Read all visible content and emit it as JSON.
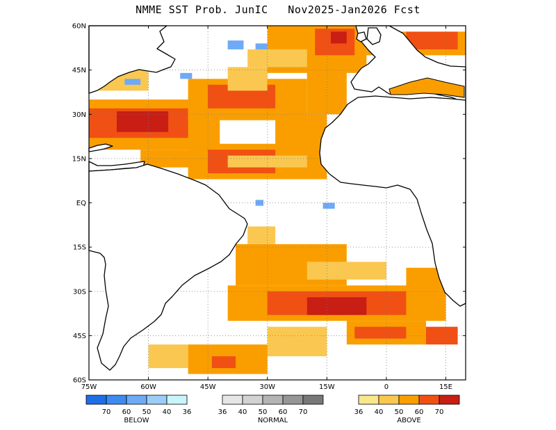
{
  "title": "NMME SST Prob. JunIC   Nov2025-Jan2026 Fcst",
  "map": {
    "lat_range": [
      -60,
      60
    ],
    "lon_range": [
      -75,
      20
    ],
    "lat_ticks": [
      "60N",
      "45N",
      "30N",
      "15N",
      "EQ",
      "15S",
      "30S",
      "45S",
      "60S"
    ],
    "lon_ticks": [
      "75W",
      "60W",
      "45W",
      "30W",
      "15W",
      "0",
      "15E"
    ],
    "grid": "dotted",
    "land_color": "#ffffff",
    "coast_color": "#000000"
  },
  "legend": {
    "below": {
      "title": "BELOW",
      "colors": [
        "#1e6fe6",
        "#3c8cf0",
        "#6eaaf5",
        "#9ccdf8",
        "#c8f5fa"
      ],
      "labels": [
        "70",
        "60",
        "50",
        "40",
        "36"
      ]
    },
    "normal": {
      "title": "NORMAL",
      "colors": [
        "#e6e6e6",
        "#d2d2d2",
        "#b4b4b4",
        "#969696",
        "#787878"
      ],
      "labels": [
        "36",
        "40",
        "50",
        "60",
        "70"
      ]
    },
    "above": {
      "title": "ABOVE",
      "colors": [
        "#fae68c",
        "#fac850",
        "#fa9e00",
        "#f05014",
        "#c81e14"
      ],
      "labels": [
        "36",
        "40",
        "50",
        "60",
        "70"
      ]
    }
  }
}
